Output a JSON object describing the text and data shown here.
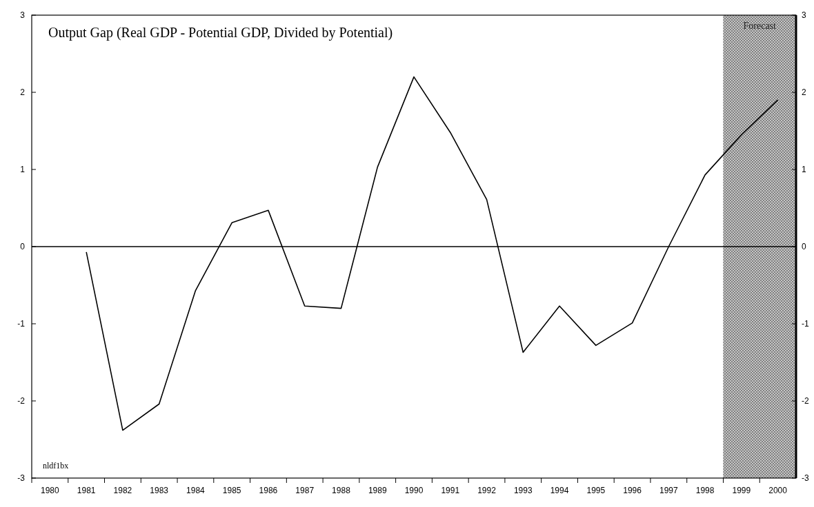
{
  "chart_data": {
    "type": "line",
    "title": "Output Gap (Real GDP - Potential GDP, Divided by Potential)",
    "categories": [
      "1980",
      "1981",
      "1982",
      "1983",
      "1984",
      "1985",
      "1986",
      "1987",
      "1988",
      "1989",
      "1990",
      "1991",
      "1992",
      "1993",
      "1994",
      "1995",
      "1996",
      "1997",
      "1998",
      "1999",
      "2000"
    ],
    "series": [
      {
        "color": "#000000",
        "values": [
          null,
          -0.07,
          -2.38,
          -2.04,
          -0.57,
          0.31,
          0.47,
          -0.77,
          -0.8,
          1.03,
          2.2,
          1.48,
          0.61,
          -1.37,
          -0.77,
          -1.28,
          -0.99,
          0.0,
          0.93,
          1.45,
          1.9
        ]
      }
    ],
    "ylim": [
      -3,
      3
    ],
    "yticks": [
      -3,
      -2,
      -1,
      0,
      1,
      2,
      3
    ],
    "y2lim": [
      -3,
      3
    ],
    "y2ticks": [
      -3,
      -2,
      -1,
      0,
      1,
      2,
      3
    ],
    "ref_lines": [
      {
        "axis": "y",
        "value": 0,
        "color": "#000000"
      }
    ],
    "bands": [
      {
        "axis": "x",
        "from": "1999",
        "to": "2000",
        "label": "Forecast",
        "color": "#8c8c8c"
      }
    ],
    "annotations": [
      "nldf1bx"
    ],
    "grid": false,
    "marker": "none",
    "line_style": "solid"
  }
}
